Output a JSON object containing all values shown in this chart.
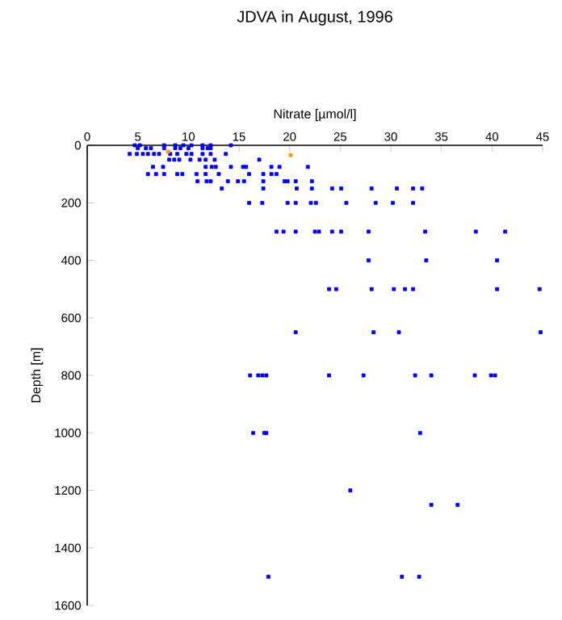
{
  "chart_data": {
    "type": "scatter",
    "title": "JDVA in August, 1996",
    "xlabel": "Nitrate [µmol/l]",
    "ylabel": "Depth [m]",
    "xlim": [
      0,
      45
    ],
    "xticks": [
      0,
      5,
      10,
      15,
      20,
      25,
      30,
      35,
      40,
      45
    ],
    "ylim": [
      1600,
      0
    ],
    "yticks": [
      0,
      200,
      400,
      600,
      800,
      1000,
      1200,
      1400,
      1600
    ],
    "marker": "square",
    "series": [
      {
        "color": "#0000ff",
        "x": [
          4.7,
          5.2,
          7.6,
          8.7,
          9.5,
          10.3,
          11.4,
          12.2,
          14.2,
          5.0,
          5.8,
          6.3,
          7.6,
          8.7,
          9.2,
          10.0,
          11.4,
          11.9,
          12.2,
          4.2,
          4.9,
          5.5,
          6.0,
          6.6,
          7.1,
          8.2,
          8.9,
          9.8,
          10.3,
          11.4,
          12.2,
          13.7,
          8.1,
          8.6,
          9.1,
          10.2,
          11.1,
          11.7,
          12.6,
          17.0,
          6.5,
          7.5,
          11.7,
          12.3,
          12.7,
          14.2,
          15.4,
          15.7,
          18.2,
          19.0,
          21.8,
          6.0,
          6.8,
          7.6,
          8.9,
          9.4,
          10.8,
          11.7,
          13.0,
          16.0,
          17.4,
          18.2,
          18.7,
          10.9,
          11.8,
          12.2,
          13.9,
          14.9,
          15.5,
          17.4,
          19.5,
          19.8,
          20.6,
          22.2,
          13.3,
          17.4,
          20.7,
          22.2,
          24.2,
          25.1,
          28.1,
          30.6,
          32.2,
          33.1,
          16.0,
          17.3,
          19.8,
          20.6,
          22.1,
          22.6,
          25.6,
          28.5,
          30.2,
          32.2,
          18.7,
          19.4,
          20.6,
          22.5,
          22.9,
          24.2,
          25.1,
          27.8,
          33.4,
          38.4,
          41.3,
          27.8,
          33.5,
          40.5,
          23.9,
          24.6,
          28.1,
          30.3,
          31.4,
          32.2,
          40.5,
          44.7,
          20.6,
          28.3,
          30.8,
          44.8,
          16.1,
          16.9,
          17.3,
          17.7,
          23.9,
          27.3,
          32.4,
          34.0,
          38.3,
          39.9,
          40.3,
          16.4,
          17.5,
          17.7,
          32.9,
          26.0,
          34.0,
          36.6,
          17.9,
          31.1,
          32.8
        ],
        "values": [
          0,
          0,
          0,
          0,
          0,
          0,
          0,
          0,
          0,
          10,
          10,
          10,
          10,
          10,
          10,
          10,
          10,
          10,
          10,
          30,
          30,
          30,
          30,
          30,
          30,
          30,
          30,
          30,
          30,
          30,
          30,
          30,
          50,
          50,
          50,
          50,
          50,
          50,
          50,
          50,
          75,
          75,
          75,
          75,
          75,
          75,
          75,
          75,
          75,
          75,
          75,
          100,
          100,
          100,
          100,
          100,
          100,
          100,
          100,
          100,
          100,
          100,
          100,
          125,
          125,
          125,
          125,
          125,
          125,
          125,
          125,
          125,
          125,
          125,
          150,
          150,
          150,
          150,
          150,
          150,
          150,
          150,
          150,
          150,
          200,
          200,
          200,
          200,
          200,
          200,
          200,
          200,
          200,
          200,
          300,
          300,
          300,
          300,
          300,
          300,
          300,
          300,
          300,
          300,
          300,
          400,
          400,
          400,
          500,
          500,
          500,
          500,
          500,
          500,
          500,
          500,
          650,
          650,
          650,
          650,
          800,
          800,
          800,
          800,
          800,
          800,
          800,
          800,
          800,
          800,
          800,
          1000,
          1000,
          1000,
          1000,
          1200,
          1250,
          1250,
          1500,
          1500,
          1500
        ]
      },
      {
        "color": "#ff9900",
        "x": [
          8.0,
          20.1
        ],
        "values": [
          22,
          34
        ]
      }
    ]
  }
}
